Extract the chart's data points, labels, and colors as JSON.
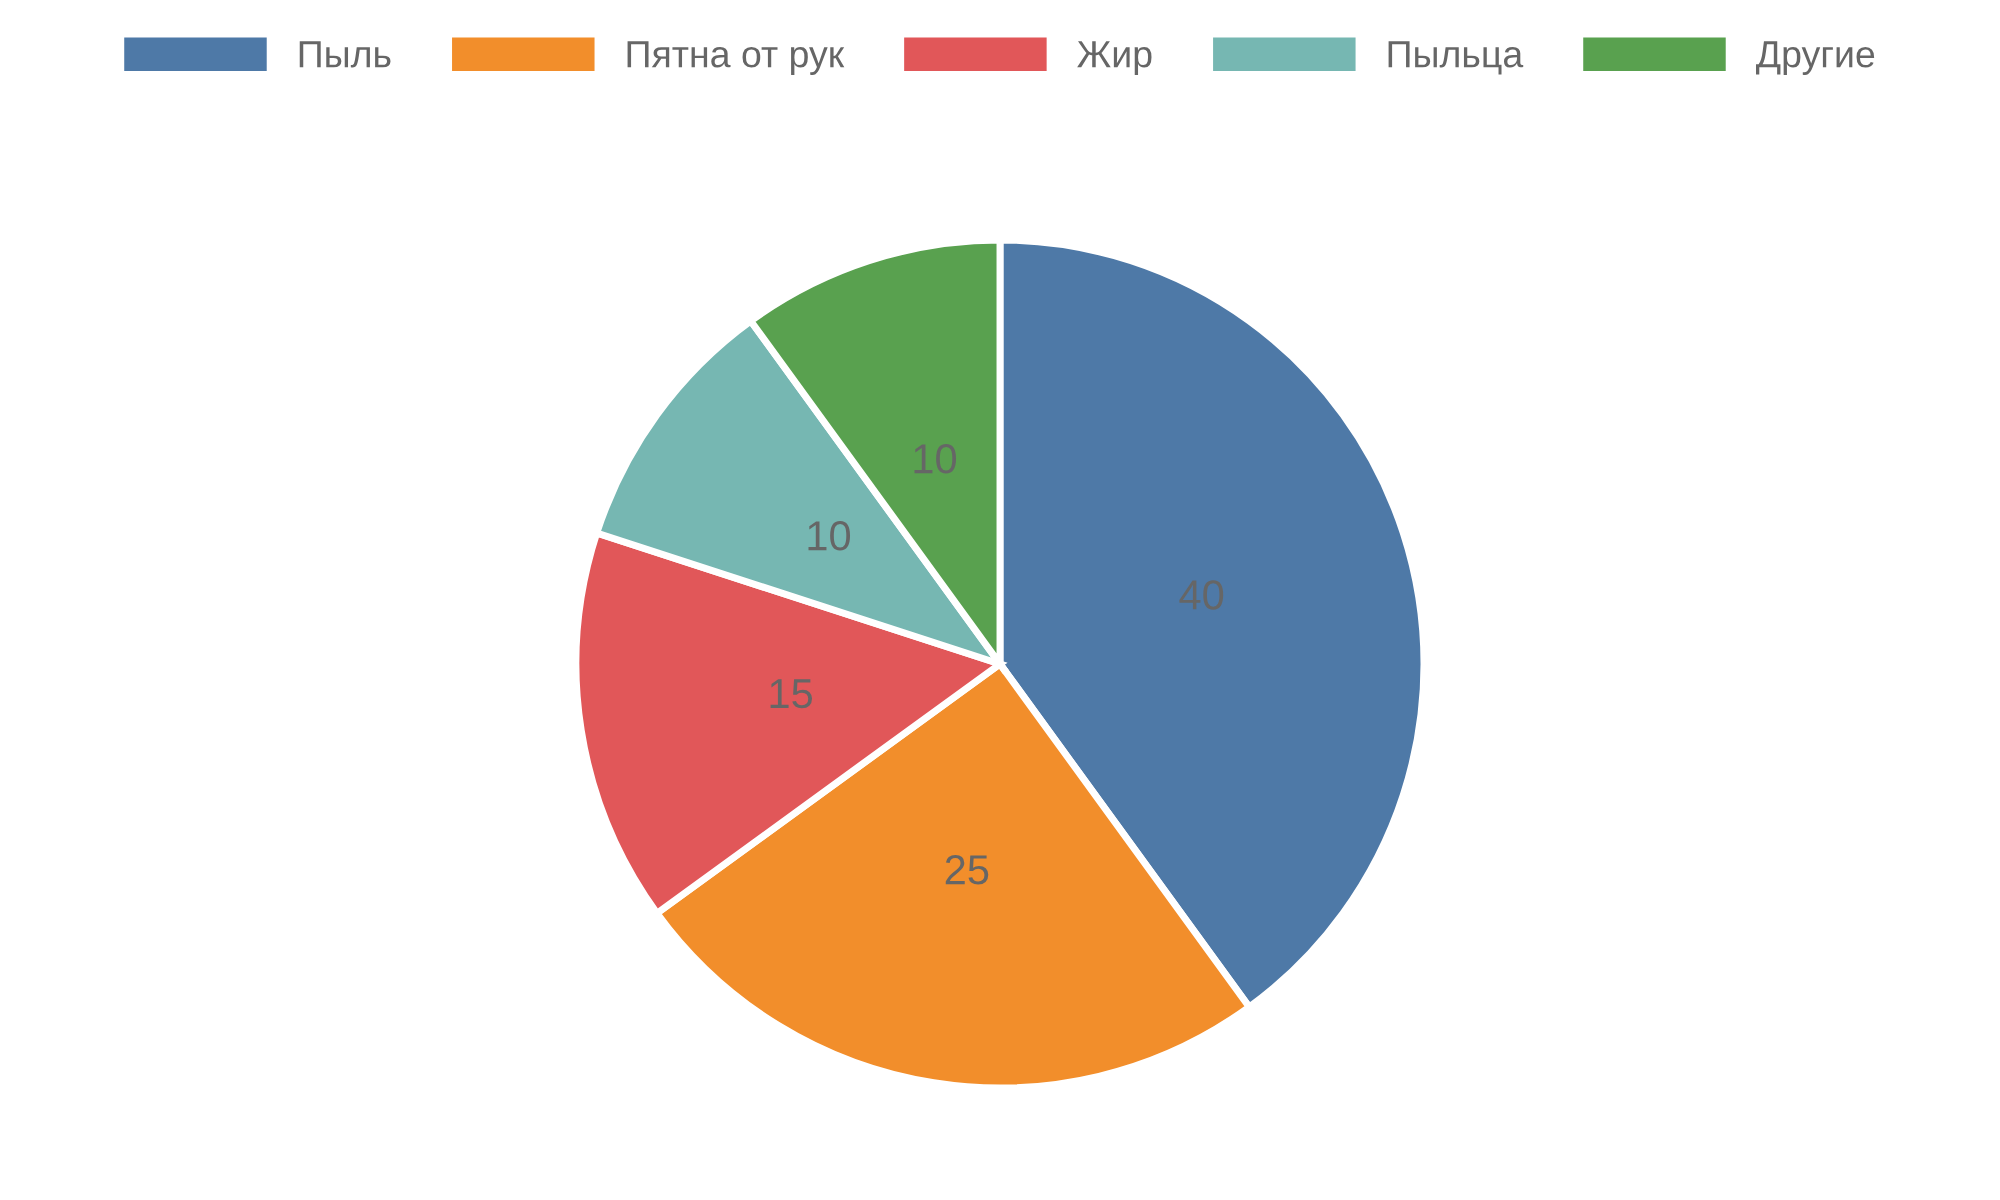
{
  "chart_data": {
    "type": "pie",
    "categories": [
      "Пыль",
      "Пятна от рук",
      "Жир",
      "Пыльца",
      "Другие"
    ],
    "values": [
      40,
      25,
      15,
      10,
      10
    ],
    "colors": [
      "#4e79a7",
      "#f28e2b",
      "#e15759",
      "#76b7b2",
      "#59a14f"
    ],
    "data_labels": true,
    "legend": "top"
  }
}
